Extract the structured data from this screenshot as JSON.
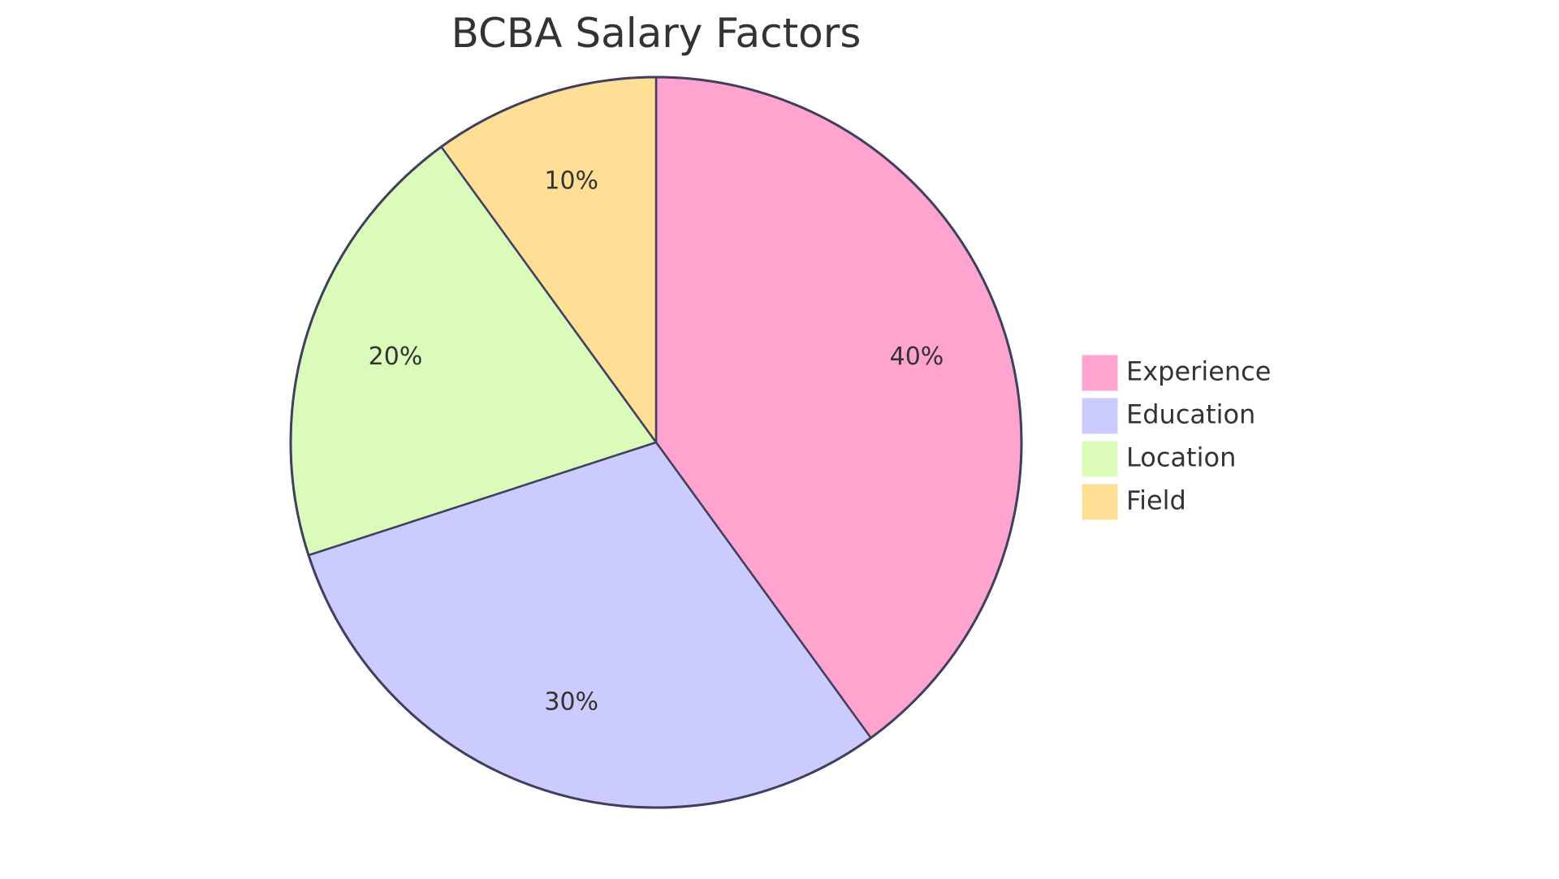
{
  "chart_data": {
    "type": "pie",
    "title": "BCBA Salary Factors",
    "categories": [
      "Experience",
      "Education",
      "Location",
      "Field"
    ],
    "values": [
      40,
      30,
      20,
      10
    ],
    "value_labels": [
      "40%",
      "30%",
      "20%",
      "10%"
    ],
    "colors": [
      "#ffa3cf",
      "#cbcbfe",
      "#dbfbba",
      "#ffdf96"
    ],
    "legend_position": "right",
    "start_angle": "top (12 o'clock)",
    "direction": "clockwise"
  },
  "colors": {
    "outline": "#3f3f5f",
    "text": "#333333"
  }
}
